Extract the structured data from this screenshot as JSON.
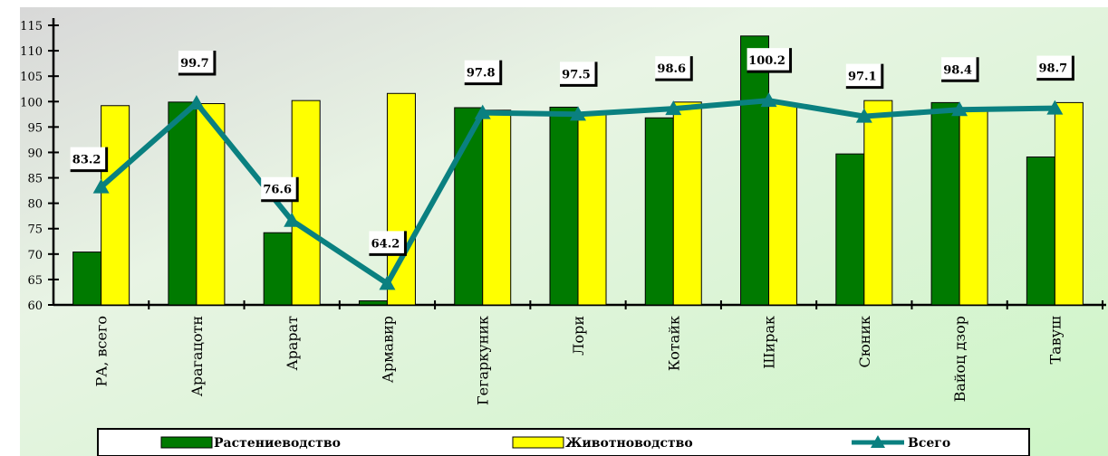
{
  "chart_data": {
    "type": "bar",
    "categories": [
      "РА, всего",
      "Арагацотн",
      "Арарат",
      "Армавир",
      "Гегаркуник",
      "Лори",
      "Котайк",
      "Ширак",
      "Сюник",
      "Вайоц дзор",
      "Тавуш"
    ],
    "ylim": [
      60,
      115
    ],
    "yticks": [
      60,
      65,
      70,
      75,
      80,
      85,
      90,
      95,
      100,
      105,
      110,
      115
    ],
    "grid": false,
    "legend_position": "bottom",
    "series": [
      {
        "name": "Растениеводство",
        "type": "bar",
        "color": "#007A00",
        "values": [
          70.4,
          99.9,
          74.2,
          60.8,
          98.8,
          98.9,
          96.8,
          112.9,
          89.7,
          99.8,
          89.1
        ]
      },
      {
        "name": "Животноводство",
        "type": "bar",
        "color": "#FFFF00",
        "values": [
          99.2,
          99.6,
          100.2,
          101.6,
          98.3,
          97.8,
          99.9,
          99.5,
          100.2,
          98.5,
          99.8
        ]
      },
      {
        "name": "Всего",
        "type": "line",
        "color": "#0A8080",
        "values": [
          83.2,
          99.7,
          76.6,
          64.2,
          97.8,
          97.5,
          98.6,
          100.2,
          97.1,
          98.4,
          98.7
        ],
        "labels": [
          "83.2",
          "99.7",
          "76.6",
          "64.2",
          "97.8",
          "97.5",
          "98.6",
          "100.2",
          "97.1",
          "98.4",
          "98.7"
        ]
      }
    ]
  }
}
